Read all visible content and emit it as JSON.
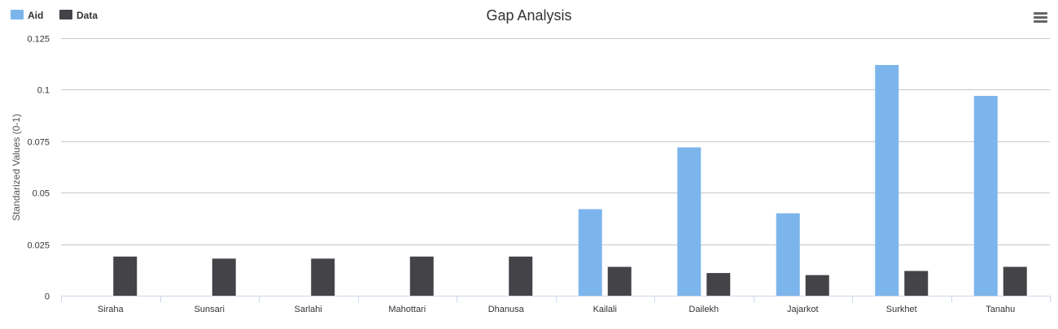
{
  "chart_data": {
    "type": "bar",
    "title": "Gap Analysis",
    "ylabel": "Standarized Values (0-1)",
    "xlabel": "",
    "ylim": [
      0,
      0.125
    ],
    "yticks": [
      "0",
      "0.025",
      "0.05",
      "0.075",
      "0.1",
      "0.125"
    ],
    "grid": true,
    "legend_position": "top-left",
    "categories": [
      "Siraha",
      "Sunsari",
      "Sarlahi",
      "Mahottari",
      "Dhanusa",
      "Kailali",
      "Dailekh",
      "Jajarkot",
      "Surkhet",
      "Tanahu"
    ],
    "series": [
      {
        "name": "Aid",
        "color": "#7cb5ec",
        "values": [
          0,
          0,
          0,
          0,
          0,
          0.042,
          0.072,
          0.04,
          0.112,
          0.097
        ]
      },
      {
        "name": "Data",
        "color": "#434348",
        "values": [
          0.019,
          0.018,
          0.018,
          0.019,
          0.019,
          0.014,
          0.011,
          0.01,
          0.012,
          0.014
        ]
      }
    ]
  },
  "menu": {
    "icon": "hamburger-menu-icon"
  }
}
